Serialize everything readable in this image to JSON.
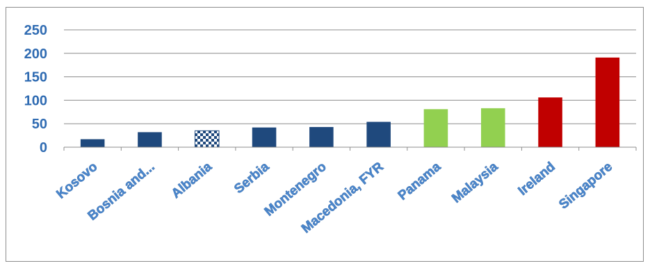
{
  "chart_data": {
    "type": "bar",
    "title": "",
    "xlabel": "",
    "ylabel": "",
    "ylim": [
      0,
      250
    ],
    "yticks": [
      0,
      50,
      100,
      150,
      200,
      250
    ],
    "grid": true,
    "legend": "none",
    "categories": [
      "Kosovo",
      "Bosnia and...",
      "Albania",
      "Serbia",
      "Montenegro",
      "Macedonia, FYR",
      "Panama",
      "Malaysia",
      "Ireland",
      "Singapore"
    ],
    "values": [
      17,
      32,
      35,
      42,
      43,
      54,
      81,
      83,
      106,
      191
    ],
    "bar_colors": [
      "#1f497d",
      "#1f497d",
      "pattern-checker",
      "#1f497d",
      "#1f497d",
      "#1f497d",
      "#92d050",
      "#92d050",
      "#c00000",
      "#c00000"
    ]
  }
}
